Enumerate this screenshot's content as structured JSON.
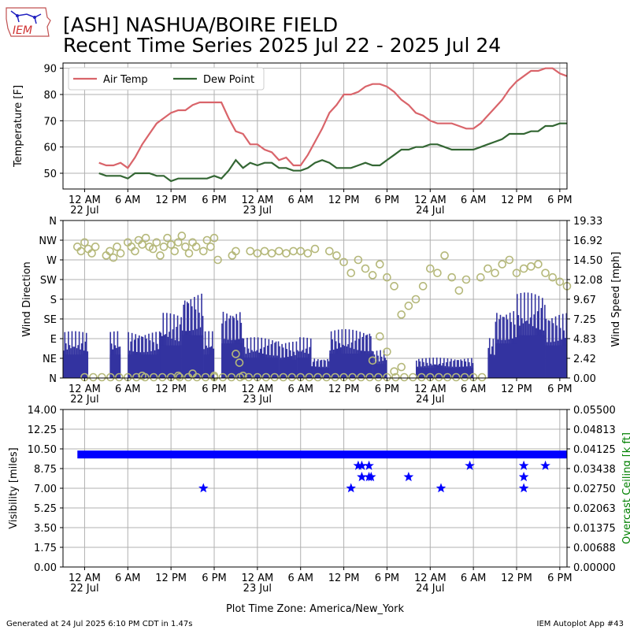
{
  "header": {
    "title_line1": "[ASH] NASHUA/BOIRE FIELD",
    "title_line2": "Recent Time Series 2025 Jul 22 - 2025 Jul 24",
    "logo_text": "IEM"
  },
  "footer": {
    "generated": "Generated at 24 Jul 2025 6:10 PM CDT in 1.47s",
    "app": "IEM Autoplot App #43",
    "timezone_label": "Plot Time Zone: America/New_York"
  },
  "colors": {
    "air_temp": "#d9646a",
    "dew_point": "#336633",
    "wind_speed_bars": "#3333a0",
    "wind_direction_markers": "#b5b87a",
    "visibility": "#0000ff",
    "overcast_ceiling_axis": "#008000",
    "grid": "#b0b0b0"
  },
  "x_axis": {
    "hours_range": [
      -3,
      67
    ],
    "tick_hours": [
      0,
      6,
      12,
      18,
      24,
      30,
      36,
      42,
      48,
      54,
      60,
      66
    ],
    "tick_labels": [
      "12 AM",
      "6 AM",
      "12 PM",
      "6 PM",
      "12 AM",
      "6 AM",
      "12 PM",
      "6 PM",
      "12 AM",
      "6 AM",
      "12 PM",
      "6 PM"
    ],
    "day_labels": [
      {
        "hour": 0,
        "label": "22 Jul"
      },
      {
        "hour": 24,
        "label": "23 Jul"
      },
      {
        "hour": 48,
        "label": "24 Jul"
      }
    ]
  },
  "chart_data": [
    {
      "type": "line",
      "ylabel": "Temperature [F]",
      "ylim": [
        44,
        92
      ],
      "yticks": [
        50,
        60,
        70,
        80,
        90
      ],
      "grid": true,
      "legend_position": "top-left",
      "x_unit": "hours since 22 Jul 12 AM",
      "series": [
        {
          "name": "Air Temp",
          "x": [
            2,
            3,
            4,
            5,
            6,
            7,
            8,
            9,
            10,
            11,
            12,
            13,
            14,
            15,
            16,
            17,
            18,
            19,
            20,
            21,
            22,
            23,
            24,
            25,
            26,
            27,
            28,
            29,
            30,
            31,
            32,
            33,
            34,
            35,
            36,
            37,
            38,
            39,
            40,
            41,
            42,
            43,
            44,
            45,
            46,
            47,
            48,
            49,
            50,
            51,
            52,
            53,
            54,
            55,
            56,
            57,
            58,
            59,
            60,
            61,
            62,
            63,
            64,
            65,
            66,
            67
          ],
          "y": [
            54,
            53,
            53,
            54,
            52,
            56,
            61,
            65,
            69,
            71,
            73,
            74,
            74,
            76,
            77,
            77,
            77,
            77,
            71,
            66,
            65,
            61,
            61,
            59,
            58,
            55,
            56,
            53,
            53,
            57,
            62,
            67,
            73,
            76,
            80,
            80,
            81,
            83,
            84,
            84,
            83,
            81,
            78,
            76,
            73,
            72,
            70,
            69,
            69,
            69,
            68,
            67,
            67,
            69,
            72,
            75,
            78,
            82,
            85,
            87,
            89,
            89,
            90,
            90,
            88,
            87
          ]
        },
        {
          "name": "Dew Point",
          "x": [
            2,
            3,
            4,
            5,
            6,
            7,
            8,
            9,
            10,
            11,
            12,
            13,
            14,
            15,
            16,
            17,
            18,
            19,
            20,
            21,
            22,
            23,
            24,
            25,
            26,
            27,
            28,
            29,
            30,
            31,
            32,
            33,
            34,
            35,
            36,
            37,
            38,
            39,
            40,
            41,
            42,
            43,
            44,
            45,
            46,
            47,
            48,
            49,
            50,
            51,
            52,
            53,
            54,
            55,
            56,
            57,
            58,
            59,
            60,
            61,
            62,
            63,
            64,
            65,
            66,
            67
          ],
          "y": [
            50,
            49,
            49,
            49,
            48,
            50,
            50,
            50,
            49,
            49,
            47,
            48,
            48,
            48,
            48,
            48,
            49,
            48,
            51,
            55,
            52,
            54,
            53,
            54,
            54,
            52,
            52,
            51,
            51,
            52,
            54,
            55,
            54,
            52,
            52,
            52,
            53,
            54,
            53,
            53,
            55,
            57,
            59,
            59,
            60,
            60,
            61,
            61,
            60,
            59,
            59,
            59,
            59,
            60,
            61,
            62,
            63,
            65,
            65,
            65,
            66,
            66,
            68,
            68,
            69,
            69
          ]
        }
      ]
    },
    {
      "type": "bar",
      "ylabel": "Wind Direction",
      "y2label": "Wind Speed [mph]",
      "direction_ticks": [
        "N",
        "NE",
        "E",
        "SE",
        "S",
        "SW",
        "W",
        "NW",
        "N"
      ],
      "speed_ticks": [
        "0.00",
        "2.42",
        "4.83",
        "7.25",
        "9.67",
        "12.08",
        "14.50",
        "16.92",
        "19.33"
      ],
      "speed_ylim": [
        0,
        19.33
      ],
      "direction_ylim": [
        0,
        360
      ],
      "grid": true,
      "x_unit": "hours since 22 Jul 12 AM",
      "wind_speed_segments": [
        {
          "x": [
            -3,
            0.5
          ],
          "y": 5.75
        },
        {
          "x": [
            0.5,
            1
          ],
          "y": 0
        },
        {
          "x": [
            1,
            3.5
          ],
          "y": 0
        },
        {
          "x": [
            3.5,
            5
          ],
          "y": 5.75
        },
        {
          "x": [
            5,
            6
          ],
          "y": 0
        },
        {
          "x": [
            6,
            10.5
          ],
          "y": 5.75
        },
        {
          "x": [
            10.5,
            13.5
          ],
          "y": 8.0
        },
        {
          "x": [
            13.5,
            16.5
          ],
          "y": 10.5
        },
        {
          "x": [
            16.5,
            18
          ],
          "y": 5.75
        },
        {
          "x": [
            18,
            19
          ],
          "y": 0
        },
        {
          "x": [
            19,
            22
          ],
          "y": 8.5
        },
        {
          "x": [
            22,
            27
          ],
          "y": 5.0
        },
        {
          "x": [
            27,
            29.5
          ],
          "y": 4.5
        },
        {
          "x": [
            29.5,
            31.5
          ],
          "y": 5.0
        },
        {
          "x": [
            31.5,
            34
          ],
          "y": 2.5
        },
        {
          "x": [
            34,
            40
          ],
          "y": 6.0
        },
        {
          "x": [
            40,
            42
          ],
          "y": 3.5
        },
        {
          "x": [
            42,
            46
          ],
          "y": 0
        },
        {
          "x": [
            46,
            54
          ],
          "y": 2.5
        },
        {
          "x": [
            54,
            56
          ],
          "y": 0
        },
        {
          "x": [
            56,
            57
          ],
          "y": 5.0
        },
        {
          "x": [
            57,
            60
          ],
          "y": 8.5
        },
        {
          "x": [
            60,
            64
          ],
          "y": 10.5
        },
        {
          "x": [
            64,
            67
          ],
          "y": 8.0
        }
      ],
      "wind_direction_points": [
        {
          "x": -1,
          "y": 300
        },
        {
          "x": -0.5,
          "y": 290
        },
        {
          "x": 0,
          "y": 310
        },
        {
          "x": 0.5,
          "y": 295
        },
        {
          "x": 1,
          "y": 285
        },
        {
          "x": 1.5,
          "y": 300
        },
        {
          "x": 3,
          "y": 280
        },
        {
          "x": 3.5,
          "y": 290
        },
        {
          "x": 4,
          "y": 275
        },
        {
          "x": 4.5,
          "y": 300
        },
        {
          "x": 5,
          "y": 285
        },
        {
          "x": 6,
          "y": 310
        },
        {
          "x": 6.5,
          "y": 300
        },
        {
          "x": 7,
          "y": 290
        },
        {
          "x": 7.5,
          "y": 315
        },
        {
          "x": 8,
          "y": 305
        },
        {
          "x": 8.5,
          "y": 320
        },
        {
          "x": 9,
          "y": 300
        },
        {
          "x": 9.5,
          "y": 295
        },
        {
          "x": 10,
          "y": 310
        },
        {
          "x": 10.5,
          "y": 280
        },
        {
          "x": 11,
          "y": 300
        },
        {
          "x": 11.5,
          "y": 320
        },
        {
          "x": 12,
          "y": 305
        },
        {
          "x": 12.5,
          "y": 290
        },
        {
          "x": 13,
          "y": 310
        },
        {
          "x": 13.5,
          "y": 325
        },
        {
          "x": 14,
          "y": 300
        },
        {
          "x": 14.5,
          "y": 285
        },
        {
          "x": 15,
          "y": 310
        },
        {
          "x": 15.5,
          "y": 300
        },
        {
          "x": 16.5,
          "y": 290
        },
        {
          "x": 17,
          "y": 315
        },
        {
          "x": 17.5,
          "y": 300
        },
        {
          "x": 18,
          "y": 320
        },
        {
          "x": 18.5,
          "y": 270
        },
        {
          "x": 20.5,
          "y": 280
        },
        {
          "x": 21,
          "y": 290
        },
        {
          "x": 23,
          "y": 290
        },
        {
          "x": 24,
          "y": 285
        },
        {
          "x": 25,
          "y": 290
        },
        {
          "x": 26,
          "y": 285
        },
        {
          "x": 27,
          "y": 290
        },
        {
          "x": 28,
          "y": 285
        },
        {
          "x": 29,
          "y": 290
        },
        {
          "x": 30,
          "y": 290
        },
        {
          "x": 31,
          "y": 285
        },
        {
          "x": 32,
          "y": 295
        },
        {
          "x": 34,
          "y": 290
        },
        {
          "x": 35,
          "y": 280
        },
        {
          "x": 36,
          "y": 265
        },
        {
          "x": 37,
          "y": 240
        },
        {
          "x": 38,
          "y": 270
        },
        {
          "x": 39,
          "y": 250
        },
        {
          "x": 40,
          "y": 235
        },
        {
          "x": 41,
          "y": 260
        },
        {
          "x": 42,
          "y": 230
        },
        {
          "x": 43,
          "y": 210
        },
        {
          "x": 44,
          "y": 145
        },
        {
          "x": 45,
          "y": 165
        },
        {
          "x": 46,
          "y": 180
        },
        {
          "x": 47,
          "y": 210
        },
        {
          "x": 48,
          "y": 250
        },
        {
          "x": 49,
          "y": 240
        },
        {
          "x": 50,
          "y": 280
        },
        {
          "x": 51,
          "y": 230
        },
        {
          "x": 52,
          "y": 200
        },
        {
          "x": 53,
          "y": 225
        },
        {
          "x": 55,
          "y": 230
        },
        {
          "x": 56,
          "y": 250
        },
        {
          "x": 57,
          "y": 240
        },
        {
          "x": 58,
          "y": 260
        },
        {
          "x": 59,
          "y": 270
        },
        {
          "x": 60,
          "y": 240
        },
        {
          "x": 61,
          "y": 250
        },
        {
          "x": 62,
          "y": 255
        },
        {
          "x": 63,
          "y": 260
        },
        {
          "x": 64,
          "y": 240
        },
        {
          "x": 65,
          "y": 230
        },
        {
          "x": 66,
          "y": 220
        },
        {
          "x": 67,
          "y": 210
        },
        {
          "x": 21,
          "y": 55
        },
        {
          "x": 21.5,
          "y": 35
        },
        {
          "x": 22,
          "y": 5
        },
        {
          "x": 8,
          "y": 5
        },
        {
          "x": 13,
          "y": 5
        },
        {
          "x": 15,
          "y": 10
        },
        {
          "x": 18,
          "y": 5
        },
        {
          "x": 41,
          "y": 95
        },
        {
          "x": 42,
          "y": 60
        },
        {
          "x": 43,
          "y": 15
        },
        {
          "x": 44,
          "y": 25
        },
        {
          "x": 40,
          "y": 40
        }
      ]
    },
    {
      "type": "scatter",
      "ylabel": "Visibility [miles]",
      "y2label": "Overcast Ceiling [k ft]",
      "ylim": [
        0,
        14.0
      ],
      "yticks": [
        "0.00",
        "1.75",
        "3.50",
        "5.25",
        "7.00",
        "8.75",
        "10.50",
        "12.25",
        "14.00"
      ],
      "y2ticks": [
        "0.00000",
        "0.00688",
        "0.01375",
        "0.02063",
        "0.02750",
        "0.03438",
        "0.04125",
        "0.04813",
        "0.05500"
      ],
      "grid": true,
      "x_unit": "hours since 22 Jul 12 AM",
      "baseline_visibility": 10.0,
      "baseline_x_range": [
        -1,
        67
      ],
      "points": [
        {
          "x": 16.5,
          "y": 7.0
        },
        {
          "x": 37,
          "y": 7.0
        },
        {
          "x": 38,
          "y": 9.0
        },
        {
          "x": 38.5,
          "y": 9.0
        },
        {
          "x": 38.5,
          "y": 8.0
        },
        {
          "x": 39.5,
          "y": 9.0
        },
        {
          "x": 39.5,
          "y": 8.0
        },
        {
          "x": 39.8,
          "y": 8.0
        },
        {
          "x": 45,
          "y": 8.0
        },
        {
          "x": 49.5,
          "y": 7.0
        },
        {
          "x": 53.5,
          "y": 9.0
        },
        {
          "x": 61,
          "y": 9.0
        },
        {
          "x": 61,
          "y": 8.0
        },
        {
          "x": 61,
          "y": 7.0
        },
        {
          "x": 64,
          "y": 9.0
        }
      ]
    }
  ]
}
